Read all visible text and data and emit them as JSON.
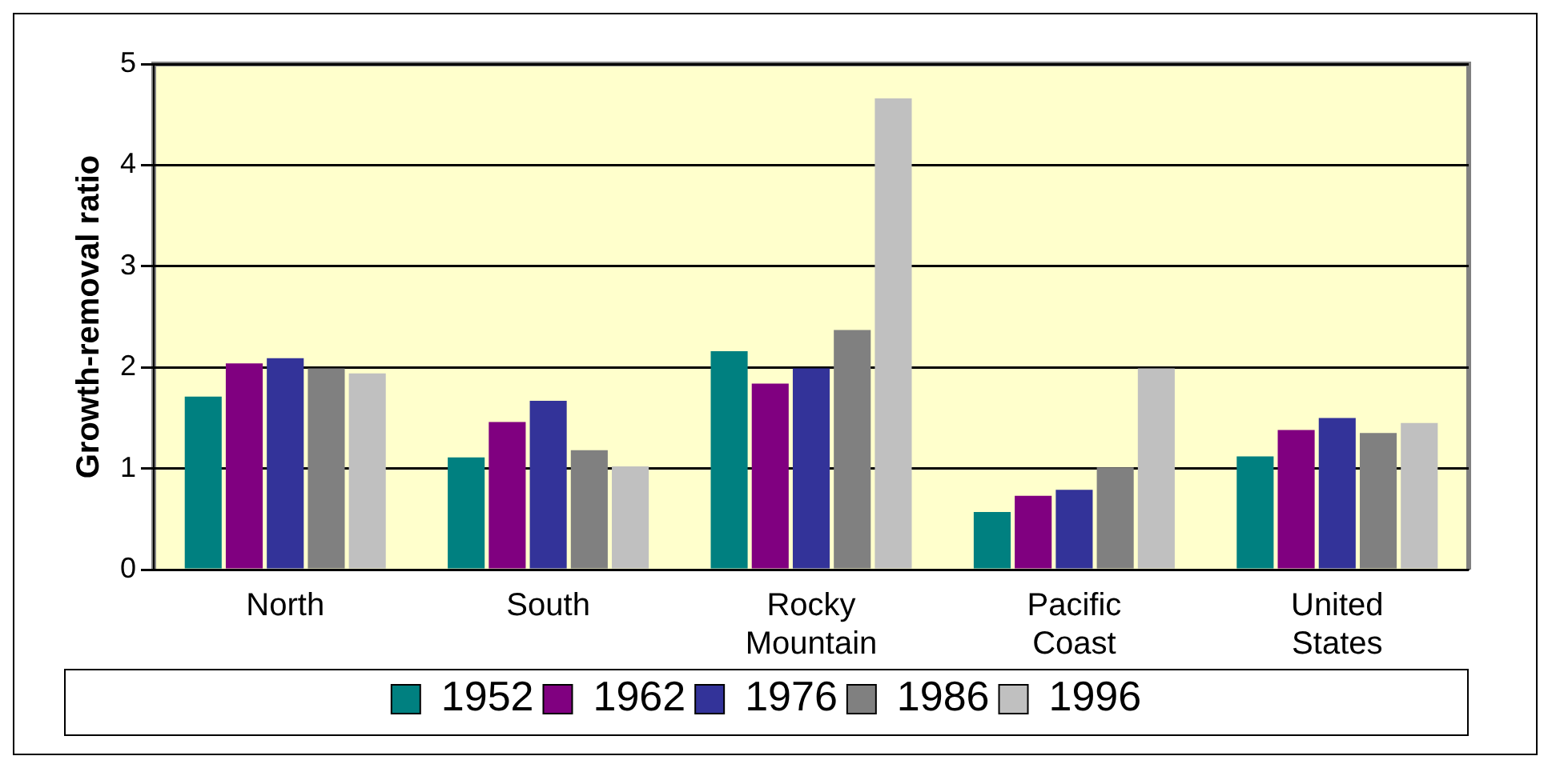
{
  "chart_data": {
    "type": "bar",
    "ylabel": "Growth-removal ratio",
    "categories": [
      "North",
      "South",
      "Rocky Mountain",
      "Pacific Coast",
      "United States"
    ],
    "series": [
      {
        "name": "1952",
        "color": "#008080",
        "values": [
          1.71,
          1.11,
          2.16,
          0.57,
          1.12
        ]
      },
      {
        "name": "1962",
        "color": "#800080",
        "values": [
          2.04,
          1.46,
          1.84,
          0.73,
          1.38
        ]
      },
      {
        "name": "1976",
        "color": "#333399",
        "values": [
          2.09,
          1.67,
          1.99,
          0.79,
          1.5
        ]
      },
      {
        "name": "1986",
        "color": "#808080",
        "values": [
          1.99,
          1.18,
          2.37,
          1.01,
          1.35
        ]
      },
      {
        "name": "1996",
        "color": "#c0c0c0",
        "values": [
          1.94,
          1.02,
          4.66,
          1.99,
          1.45
        ]
      }
    ],
    "ylim": [
      0,
      5
    ],
    "yticks": [
      0,
      1,
      2,
      3,
      4,
      5
    ],
    "grid": "y",
    "legend": "bottom"
  }
}
